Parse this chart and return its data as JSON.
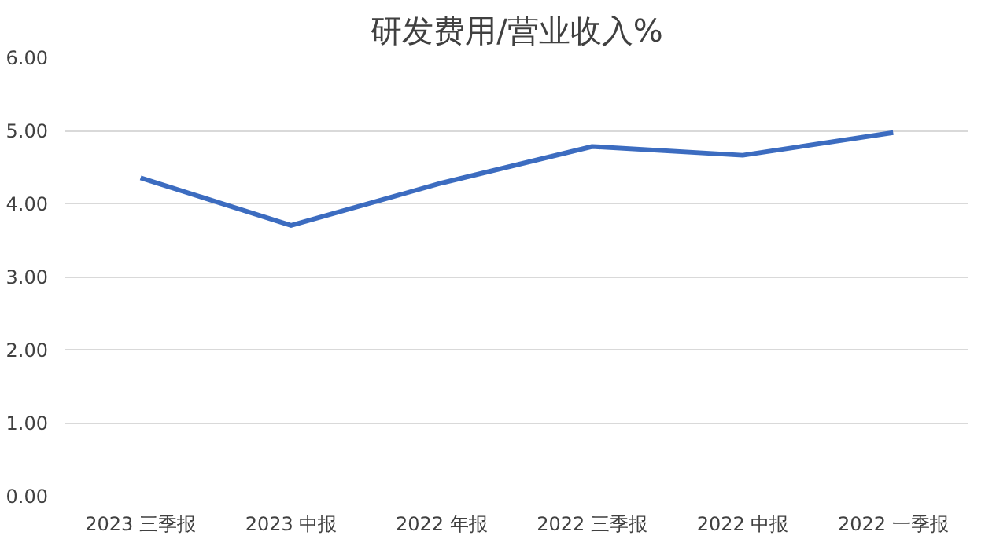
{
  "chart_data": {
    "type": "line",
    "title": "研发费用/营业收入%",
    "categories": [
      "2023 三季报",
      "2023 中报",
      "2022 年报",
      "2022 三季报",
      "2022 中报",
      "2022 一季报"
    ],
    "series": [
      {
        "color": "#3c6cc0",
        "values": [
          4.35,
          3.7,
          4.28,
          4.78,
          4.66,
          4.97
        ]
      }
    ],
    "ylim": [
      0,
      6
    ],
    "yticks": [
      {
        "value": 0,
        "label": "0.00"
      },
      {
        "value": 1,
        "label": "1.00"
      },
      {
        "value": 2,
        "label": "2.00"
      },
      {
        "value": 3,
        "label": "3.00"
      },
      {
        "value": 4,
        "label": "4.00"
      },
      {
        "value": 5,
        "label": "5.00"
      },
      {
        "value": 6,
        "label": "6.00"
      }
    ],
    "grid": "y"
  }
}
